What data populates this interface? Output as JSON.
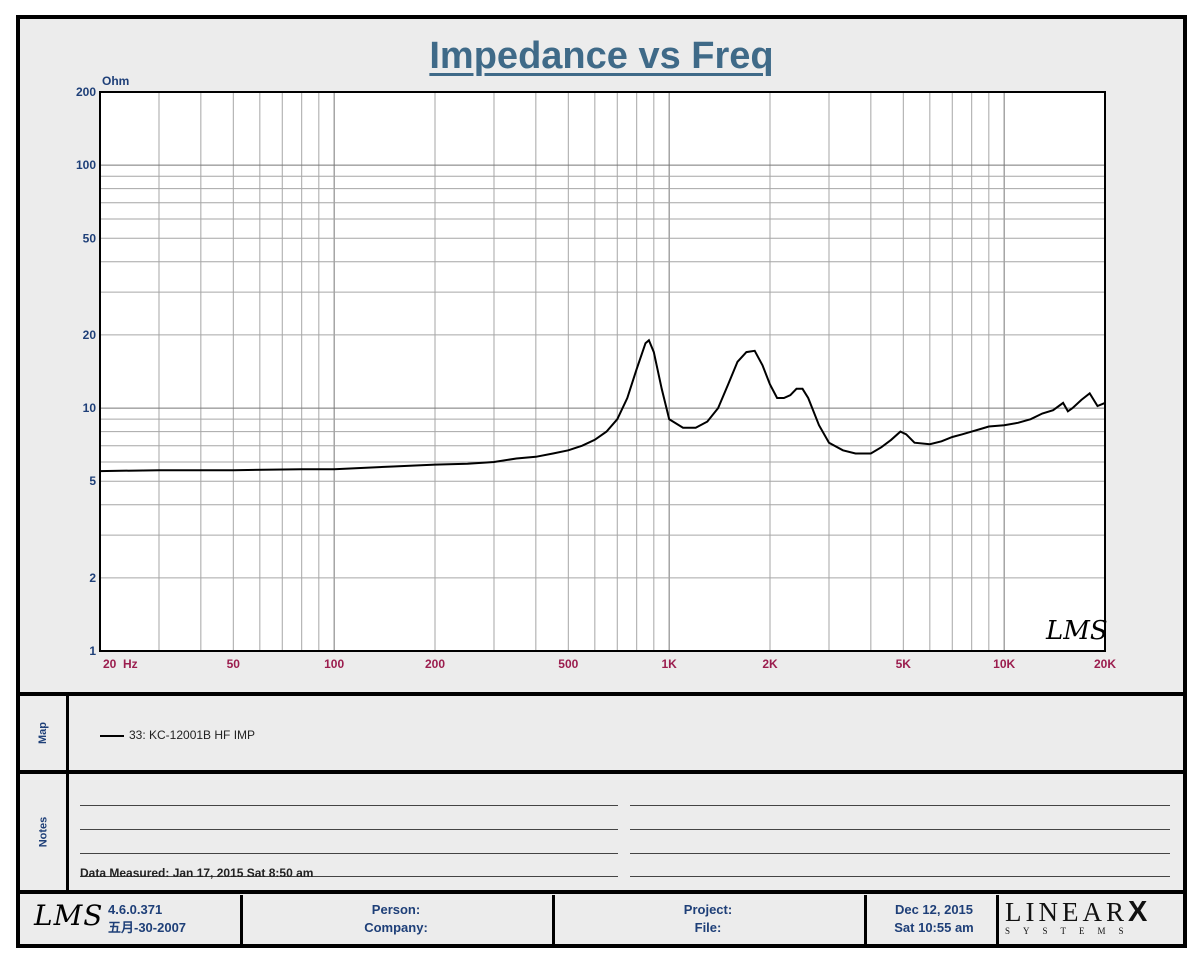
{
  "page_title": "Impedance vs Freq",
  "chart_data": {
    "type": "line",
    "title": "Impedance vs Freq",
    "ylabel": "Ohm",
    "xscale": "log",
    "yscale": "log",
    "xlim": [
      20,
      20000
    ],
    "ylim": [
      1,
      200
    ],
    "grid": true,
    "y_ticks": [
      {
        "value": 1,
        "label": "1"
      },
      {
        "value": 2,
        "label": "2"
      },
      {
        "value": 5,
        "label": "5"
      },
      {
        "value": 10,
        "label": "10"
      },
      {
        "value": 20,
        "label": "20"
      },
      {
        "value": 50,
        "label": "50"
      },
      {
        "value": 100,
        "label": "100"
      },
      {
        "value": 200,
        "label": "200"
      }
    ],
    "x_ticks": [
      {
        "value": 20,
        "label": "20  Hz"
      },
      {
        "value": 50,
        "label": "50"
      },
      {
        "value": 100,
        "label": "100"
      },
      {
        "value": 200,
        "label": "200"
      },
      {
        "value": 500,
        "label": "500"
      },
      {
        "value": 1000,
        "label": "1K"
      },
      {
        "value": 2000,
        "label": "2K"
      },
      {
        "value": 5000,
        "label": "5K"
      },
      {
        "value": 10000,
        "label": "10K"
      },
      {
        "value": 20000,
        "label": "20K"
      }
    ],
    "series": [
      {
        "name": "33:  KC-12001B  HF  IMP",
        "color": "#000000",
        "x": [
          20,
          30,
          50,
          80,
          100,
          150,
          200,
          250,
          300,
          350,
          400,
          450,
          500,
          550,
          600,
          650,
          700,
          750,
          800,
          850,
          870,
          900,
          950,
          1000,
          1100,
          1200,
          1300,
          1400,
          1500,
          1600,
          1700,
          1800,
          1900,
          2000,
          2100,
          2200,
          2300,
          2400,
          2500,
          2600,
          2800,
          3000,
          3300,
          3600,
          4000,
          4300,
          4600,
          4900,
          5100,
          5400,
          6000,
          6500,
          7000,
          7500,
          8000,
          8500,
          9000,
          10000,
          11000,
          12000,
          13000,
          14000,
          15000,
          15500,
          16000,
          17000,
          18000,
          19000,
          20000
        ],
        "y": [
          5.5,
          5.55,
          5.55,
          5.6,
          5.6,
          5.75,
          5.85,
          5.9,
          6.0,
          6.2,
          6.3,
          6.5,
          6.7,
          7.0,
          7.4,
          8.0,
          9.0,
          11.0,
          14.5,
          18.5,
          19.0,
          17.0,
          12.0,
          9.0,
          8.3,
          8.3,
          8.8,
          10.0,
          12.5,
          15.5,
          17.0,
          17.2,
          15.0,
          12.5,
          11.0,
          11.0,
          11.3,
          12.0,
          12.0,
          11.0,
          8.5,
          7.2,
          6.7,
          6.5,
          6.5,
          6.9,
          7.4,
          8.0,
          7.8,
          7.2,
          7.1,
          7.3,
          7.6,
          7.8,
          8.0,
          8.2,
          8.4,
          8.5,
          8.7,
          9.0,
          9.5,
          9.8,
          10.5,
          9.7,
          10.0,
          10.8,
          11.5,
          10.2,
          10.5
        ]
      }
    ]
  },
  "map": {
    "label": "Map",
    "entries": [
      {
        "label": "33:  KC-12001B  HF  IMP"
      }
    ]
  },
  "notes": {
    "label": "Notes",
    "data_measured": "Data Measured: Jan 17, 2015  Sat  8:50 am"
  },
  "footer": {
    "logo_text": "LMS",
    "version": "4.6.0.371",
    "version_date": "五月-30-2007",
    "person_label": "Person:",
    "company_label": "Company:",
    "project_label": "Project:",
    "file_label": "File:",
    "date": "Dec 12, 2015",
    "time": "Sat 10:55 am",
    "brand_top": "LINEAR",
    "brand_x": "X",
    "brand_bottom": "SYSTEMS"
  },
  "watermark_text": "LMS"
}
